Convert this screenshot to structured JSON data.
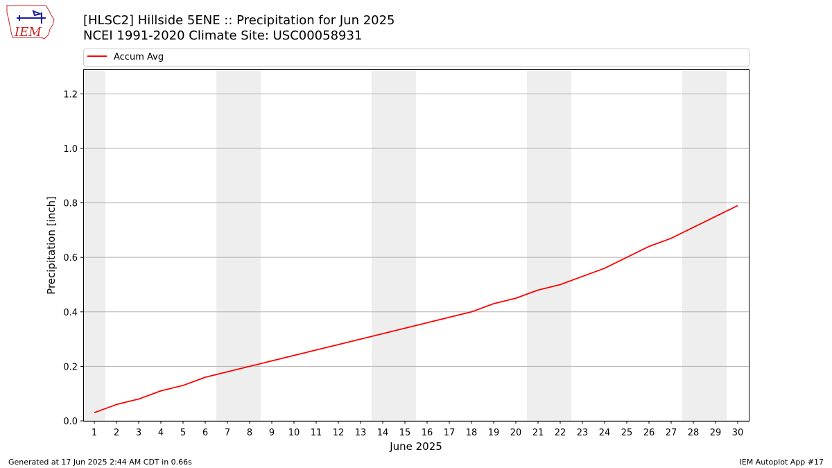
{
  "logo": {
    "text": "IEM",
    "icon": "iowa-state-outline-icon"
  },
  "footer": {
    "generated": "Generated at 17 Jun 2025 2:44 AM CDT in 0.66s",
    "app": "IEM Autoplot App #17"
  },
  "chart_data": {
    "type": "line",
    "title": "[HLSC2] Hillside 5ENE :: Precipitation for Jun 2025",
    "subtitle": "NCEI 1991-2020 Climate Site: USC00058931",
    "xlabel": "June 2025",
    "ylabel": "Precipitation [inch]",
    "xlim": [
      0.5,
      30.5
    ],
    "ylim": [
      0,
      1.29
    ],
    "yticks": [
      0.0,
      0.2,
      0.4,
      0.6,
      0.8,
      1.0,
      1.2
    ],
    "ytick_labels": [
      "0.0",
      "0.2",
      "0.4",
      "0.6",
      "0.8",
      "1.0",
      "1.2"
    ],
    "xticks": [
      1,
      2,
      3,
      4,
      5,
      6,
      7,
      8,
      9,
      10,
      11,
      12,
      13,
      14,
      15,
      16,
      17,
      18,
      19,
      20,
      21,
      22,
      23,
      24,
      25,
      26,
      27,
      28,
      29,
      30
    ],
    "xtick_labels": [
      "1",
      "2",
      "3",
      "4",
      "5",
      "6",
      "7",
      "8",
      "9",
      "10",
      "11",
      "12",
      "13",
      "14",
      "15",
      "16",
      "17",
      "18",
      "19",
      "20",
      "21",
      "22",
      "23",
      "24",
      "25",
      "26",
      "27",
      "28",
      "29",
      "30"
    ],
    "grid": "horizontal",
    "legend_position": "top-left",
    "weekend_shading": [
      [
        0.5,
        1.5
      ],
      [
        6.5,
        8.5
      ],
      [
        13.5,
        15.5
      ],
      [
        20.5,
        22.5
      ],
      [
        27.5,
        29.5
      ]
    ],
    "shading_color": "#eeeeee",
    "series": [
      {
        "name": "Accum Avg",
        "color": "#ff0000",
        "x": [
          1,
          2,
          3,
          4,
          5,
          6,
          7,
          8,
          9,
          10,
          11,
          12,
          13,
          14,
          15,
          16,
          17,
          18,
          19,
          20,
          21,
          22,
          23,
          24,
          25,
          26,
          27,
          28,
          29,
          30
        ],
        "values": [
          0.03,
          0.06,
          0.08,
          0.11,
          0.13,
          0.16,
          0.18,
          0.2,
          0.22,
          0.24,
          0.26,
          0.28,
          0.3,
          0.32,
          0.34,
          0.36,
          0.38,
          0.4,
          0.43,
          0.45,
          0.48,
          0.5,
          0.53,
          0.56,
          0.6,
          0.64,
          0.67,
          0.71,
          0.75,
          0.79
        ]
      }
    ]
  }
}
